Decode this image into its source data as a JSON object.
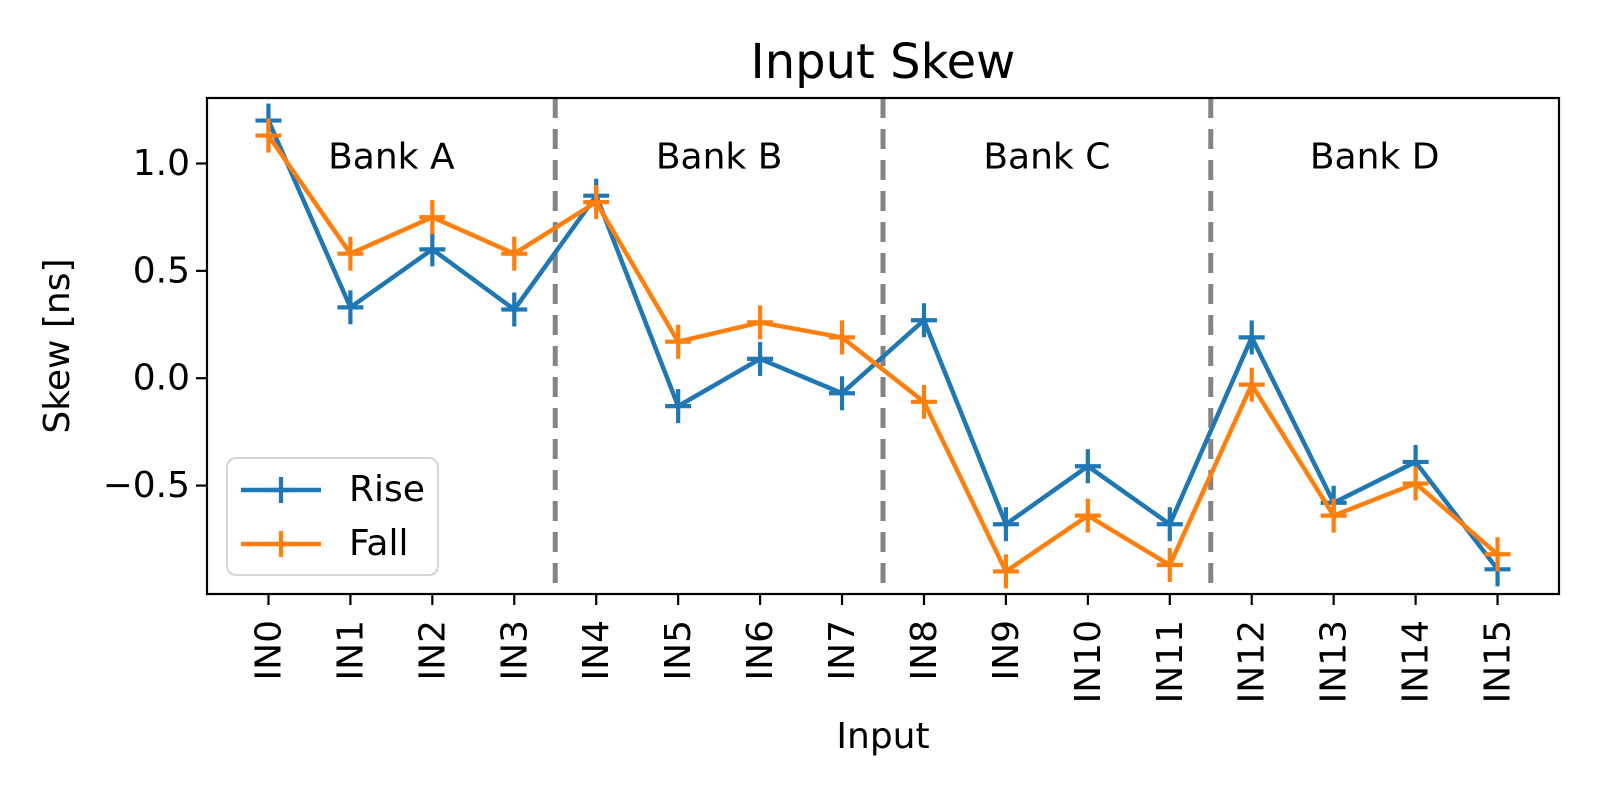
{
  "chart_data": {
    "type": "line",
    "title": "Input Skew",
    "xlabel": "Input",
    "ylabel": "Skew [ns]",
    "categories": [
      "IN0",
      "IN1",
      "IN2",
      "IN3",
      "IN4",
      "IN5",
      "IN6",
      "IN7",
      "IN8",
      "IN9",
      "IN10",
      "IN11",
      "IN12",
      "IN13",
      "IN14",
      "IN15"
    ],
    "series": [
      {
        "name": "Rise",
        "color": "#1f77b4",
        "values": [
          1.2,
          0.33,
          0.6,
          0.32,
          0.85,
          -0.13,
          0.09,
          -0.07,
          0.27,
          -0.68,
          -0.41,
          -0.68,
          0.19,
          -0.58,
          -0.39,
          -0.89
        ]
      },
      {
        "name": "Fall",
        "color": "#ff7f0e",
        "values": [
          1.13,
          0.58,
          0.75,
          0.58,
          0.82,
          0.17,
          0.26,
          0.19,
          -0.11,
          -0.9,
          -0.64,
          -0.87,
          -0.03,
          -0.64,
          -0.49,
          -0.82
        ]
      }
    ],
    "xlim": [
      -0.75,
      15.75
    ],
    "ylim": [
      -1.005,
      1.305
    ],
    "yticks": [
      1.0,
      0.5,
      0.0,
      -0.5
    ],
    "ytick_labels": [
      "1.0",
      "0.5",
      "0.0",
      "−0.5"
    ],
    "bank_labels": [
      {
        "label": "Bank A",
        "x": 1.5
      },
      {
        "label": "Bank B",
        "x": 5.5
      },
      {
        "label": "Bank C",
        "x": 9.5
      },
      {
        "label": "Bank D",
        "x": 13.5
      }
    ],
    "bank_label_y": 1.03,
    "dividers": [
      3.5,
      7.5,
      11.5
    ],
    "divider_color": "#848484",
    "grid": false,
    "marker": "+",
    "legend": {
      "position": "lower left",
      "entries": [
        "Rise",
        "Fall"
      ]
    }
  }
}
